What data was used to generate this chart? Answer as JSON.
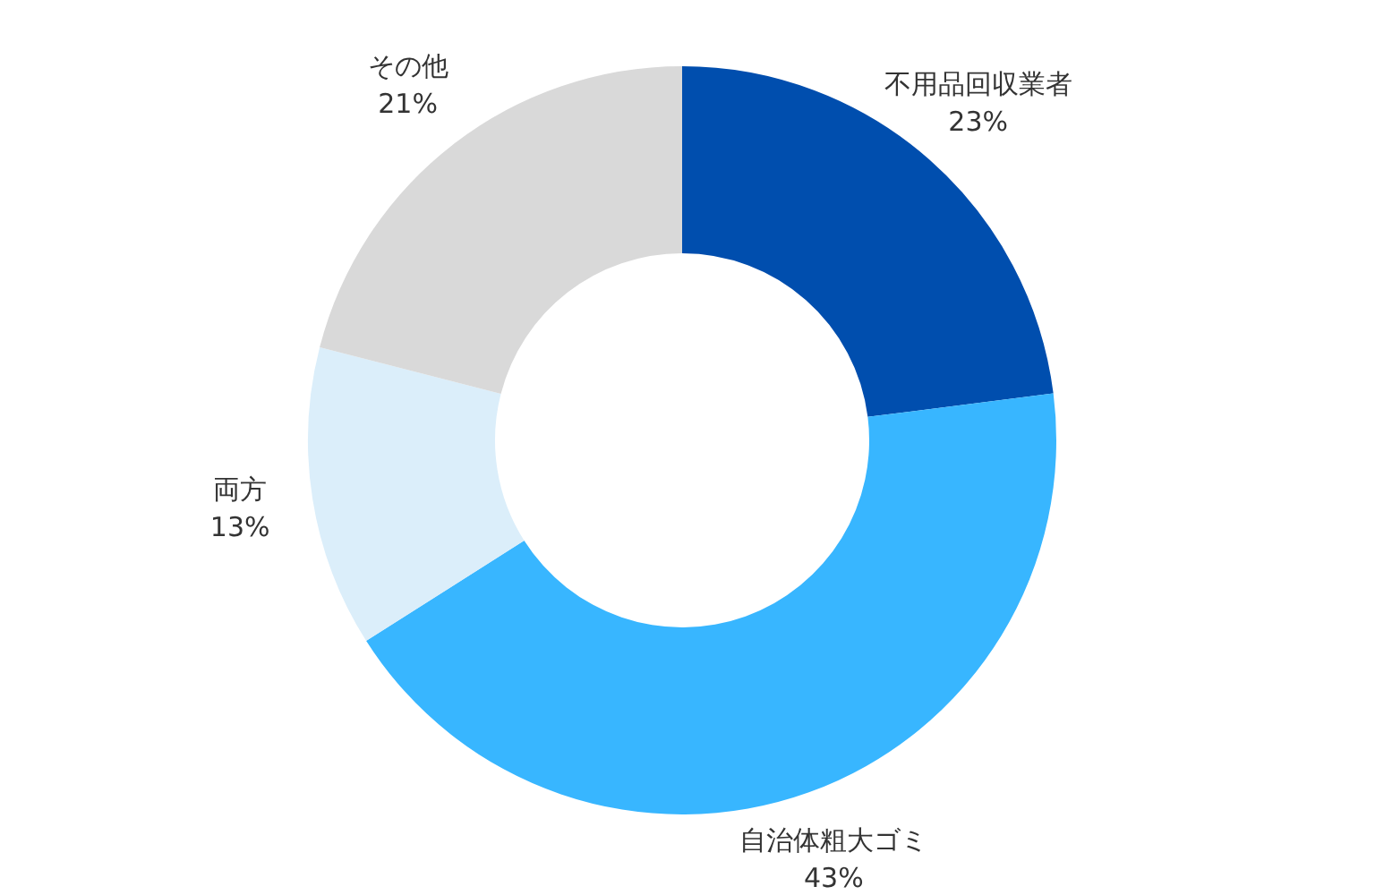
{
  "chart_data": {
    "type": "donut",
    "categories": [
      "不用品回収業者",
      "自治体粗大ゴミ",
      "両方",
      "その他"
    ],
    "values": [
      23,
      43,
      13,
      21
    ],
    "colors": [
      "#004eae",
      "#38b6ff",
      "#dbeefa",
      "#d9d9d9"
    ],
    "value_labels": [
      "23%",
      "43%",
      "13%",
      "21%"
    ]
  }
}
